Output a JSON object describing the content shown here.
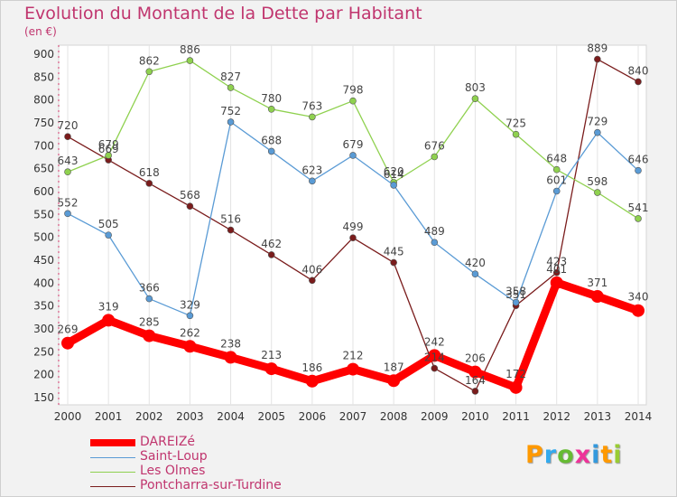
{
  "title": "Evolution du Montant de la Dette par Habitant",
  "unit_label": "(en €)",
  "logo_text": "Proxiti",
  "chart_data": {
    "type": "line",
    "title": "Evolution du Montant de la Dette par Habitant",
    "ylabel": "(en €)",
    "xlabel": "",
    "x": [
      "2000",
      "2001",
      "2002",
      "2003",
      "2004",
      "2005",
      "2006",
      "2007",
      "2008",
      "2009",
      "2010",
      "2011",
      "2012",
      "2013",
      "2014"
    ],
    "y_ticks": [
      150,
      200,
      250,
      300,
      350,
      400,
      450,
      500,
      550,
      600,
      650,
      700,
      750,
      800,
      850,
      900
    ],
    "ylim": [
      150,
      900
    ],
    "grid": "vertical",
    "legend_position": "bottom-left",
    "series": [
      {
        "name": "DAREIZé",
        "color": "#ff0000",
        "values": [
          269,
          319,
          285,
          262,
          238,
          213,
          186,
          212,
          187,
          242,
          206,
          172,
          401,
          371,
          340
        ]
      },
      {
        "name": "Saint-Loup",
        "color": "#5a9bd5",
        "values": [
          552,
          505,
          366,
          329,
          752,
          688,
          623,
          679,
          614,
          489,
          420,
          358,
          601,
          729,
          646
        ]
      },
      {
        "name": "Les Olmes",
        "color": "#8fd14f",
        "values": [
          643,
          679,
          862,
          886,
          827,
          780,
          763,
          798,
          620,
          676,
          803,
          725,
          648,
          598,
          541
        ]
      },
      {
        "name": "Pontcharra-sur-Turdine",
        "color": "#7a1c1c",
        "values": [
          720,
          669,
          618,
          568,
          516,
          462,
          406,
          499,
          445,
          214,
          164,
          351,
          423,
          889,
          840
        ]
      }
    ]
  }
}
